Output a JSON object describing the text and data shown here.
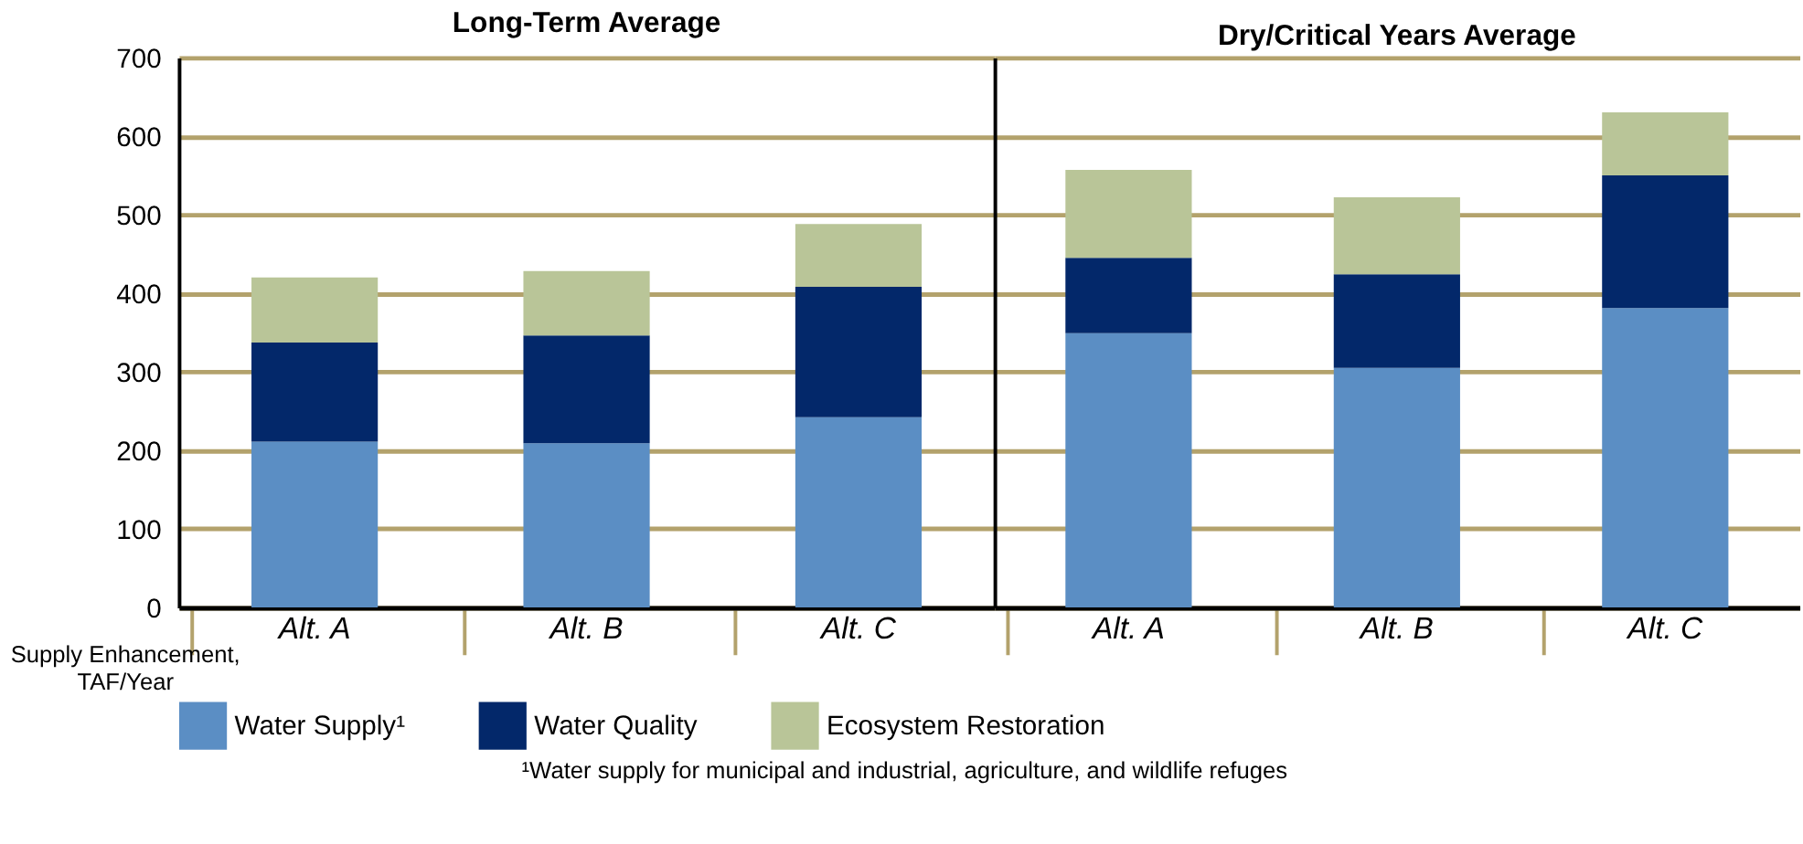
{
  "chart_data": [
    {
      "type": "bar",
      "title": "Long-Term Average",
      "ylabel": "Supply Enhancement, TAF/Year",
      "categories": [
        "Alt. A",
        "Alt. B",
        "Alt. C"
      ],
      "stacked": true,
      "ylim": [
        0,
        700
      ],
      "yticks": [
        0,
        100,
        200,
        300,
        400,
        500,
        600,
        700
      ],
      "grid": "y",
      "legend": "bottom",
      "series": [
        {
          "name": "Water Supply¹",
          "color": "#5b8ec4",
          "values": [
            211,
            209,
            242
          ]
        },
        {
          "name": "Water Quality",
          "color": "#03286a",
          "values": [
            126,
            137,
            166
          ]
        },
        {
          "name": "Ecosystem Restoration",
          "color": "#b9c598",
          "values": [
            83,
            82,
            80
          ]
        }
      ],
      "annotations": [
        "¹Water supply for municipal and industrial, agriculture, and wildlife refuges"
      ]
    },
    {
      "type": "bar",
      "title": "Dry/Critical Years Average",
      "categories": [
        "Alt. A",
        "Alt. B",
        "Alt. C"
      ],
      "stacked": true,
      "ylim": [
        0,
        700
      ],
      "yticks": [
        0,
        100,
        200,
        300,
        400,
        500,
        600,
        700
      ],
      "grid": "y",
      "tick_labels": "x",
      "series": [
        {
          "name": "Water Supply¹",
          "color": "#5b8ec4",
          "values": [
            349,
            305,
            381
          ]
        },
        {
          "name": "Water Quality",
          "color": "#03286a",
          "values": [
            96,
            119,
            169
          ]
        },
        {
          "name": "Ecosystem Restoration",
          "color": "#b9c598",
          "values": [
            112,
            98,
            80
          ]
        }
      ]
    }
  ]
}
